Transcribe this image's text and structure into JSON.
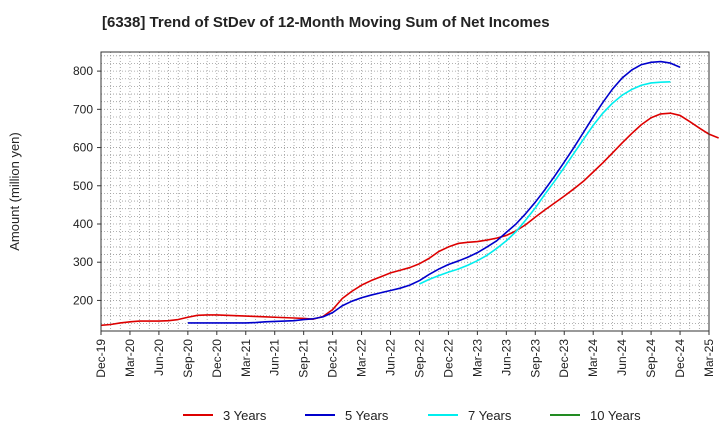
{
  "chart_data": {
    "type": "line",
    "title": "[6338]  Trend of StDev of 12-Month Moving Sum of Net Incomes",
    "xlabel": "",
    "ylabel": "Amount (million yen)",
    "ylim": [
      120,
      850
    ],
    "yticks": [
      200,
      300,
      400,
      500,
      600,
      700,
      800
    ],
    "x_ticks": [
      "Dec-19",
      "Mar-20",
      "Jun-20",
      "Sep-20",
      "Dec-20",
      "Mar-21",
      "Jun-21",
      "Sep-21",
      "Dec-21",
      "Mar-22",
      "Jun-22",
      "Sep-22",
      "Dec-22",
      "Mar-23",
      "Jun-23",
      "Sep-23",
      "Dec-23",
      "Mar-24",
      "Jun-24",
      "Sep-24",
      "Dec-24",
      "Mar-25"
    ],
    "grid": true,
    "legend_position": "bottom",
    "series": [
      {
        "name": "3 Years",
        "color": "#dd0000",
        "points": [
          [
            0,
            135
          ],
          [
            1,
            137
          ],
          [
            2,
            141
          ],
          [
            3,
            144
          ],
          [
            4,
            146
          ],
          [
            5,
            146
          ],
          [
            6,
            146
          ],
          [
            7,
            147
          ],
          [
            8,
            150
          ],
          [
            9,
            156
          ],
          [
            10,
            161
          ],
          [
            11,
            162
          ],
          [
            12,
            162
          ],
          [
            13,
            161
          ],
          [
            14,
            160
          ],
          [
            15,
            159
          ],
          [
            16,
            158
          ],
          [
            17,
            157
          ],
          [
            18,
            156
          ],
          [
            19,
            155
          ],
          [
            20,
            154
          ],
          [
            21,
            153
          ],
          [
            22,
            151
          ],
          [
            23,
            158
          ],
          [
            24,
            176
          ],
          [
            25,
            205
          ],
          [
            26,
            224
          ],
          [
            27,
            240
          ],
          [
            28,
            252
          ],
          [
            29,
            262
          ],
          [
            30,
            272
          ],
          [
            31,
            279
          ],
          [
            32,
            286
          ],
          [
            33,
            296
          ],
          [
            34,
            310
          ],
          [
            35,
            328
          ],
          [
            36,
            340
          ],
          [
            37,
            349
          ],
          [
            38,
            352
          ],
          [
            39,
            354
          ],
          [
            40,
            358
          ],
          [
            41,
            363
          ],
          [
            42,
            370
          ],
          [
            43,
            382
          ],
          [
            44,
            398
          ],
          [
            45,
            418
          ],
          [
            46,
            437
          ],
          [
            47,
            455
          ],
          [
            48,
            473
          ],
          [
            49,
            492
          ],
          [
            50,
            512
          ],
          [
            51,
            536
          ],
          [
            52,
            560
          ],
          [
            53,
            586
          ],
          [
            54,
            612
          ],
          [
            55,
            637
          ],
          [
            56,
            660
          ],
          [
            57,
            678
          ],
          [
            58,
            688
          ],
          [
            59,
            690
          ],
          [
            60,
            684
          ],
          [
            61,
            668
          ],
          [
            62,
            651
          ],
          [
            63,
            635
          ],
          [
            64,
            625
          ]
        ]
      },
      {
        "name": "5 Years",
        "color": "#0000cc",
        "points": [
          [
            9,
            141
          ],
          [
            10,
            141
          ],
          [
            11,
            141
          ],
          [
            12,
            141
          ],
          [
            13,
            141
          ],
          [
            14,
            141
          ],
          [
            15,
            141
          ],
          [
            16,
            142
          ],
          [
            17,
            144
          ],
          [
            18,
            145
          ],
          [
            19,
            146
          ],
          [
            20,
            147
          ],
          [
            21,
            150
          ],
          [
            22,
            152
          ],
          [
            23,
            157
          ],
          [
            24,
            168
          ],
          [
            25,
            186
          ],
          [
            26,
            198
          ],
          [
            27,
            207
          ],
          [
            28,
            214
          ],
          [
            29,
            220
          ],
          [
            30,
            226
          ],
          [
            31,
            232
          ],
          [
            32,
            240
          ],
          [
            33,
            252
          ],
          [
            34,
            268
          ],
          [
            35,
            282
          ],
          [
            36,
            294
          ],
          [
            37,
            303
          ],
          [
            38,
            313
          ],
          [
            39,
            325
          ],
          [
            40,
            340
          ],
          [
            41,
            356
          ],
          [
            42,
            378
          ],
          [
            43,
            400
          ],
          [
            44,
            427
          ],
          [
            45,
            457
          ],
          [
            46,
            490
          ],
          [
            47,
            525
          ],
          [
            48,
            562
          ],
          [
            49,
            600
          ],
          [
            50,
            640
          ],
          [
            51,
            680
          ],
          [
            52,
            718
          ],
          [
            53,
            753
          ],
          [
            54,
            782
          ],
          [
            55,
            803
          ],
          [
            56,
            817
          ],
          [
            57,
            823
          ],
          [
            58,
            825
          ],
          [
            59,
            821
          ],
          [
            60,
            810
          ]
        ]
      },
      {
        "name": "7 Years",
        "color": "#00eeee",
        "points": [
          [
            33,
            243
          ],
          [
            34,
            255
          ],
          [
            35,
            265
          ],
          [
            36,
            274
          ],
          [
            37,
            282
          ],
          [
            38,
            292
          ],
          [
            39,
            304
          ],
          [
            40,
            318
          ],
          [
            41,
            336
          ],
          [
            42,
            356
          ],
          [
            43,
            380
          ],
          [
            44,
            410
          ],
          [
            45,
            442
          ],
          [
            46,
            478
          ],
          [
            47,
            512
          ],
          [
            48,
            548
          ],
          [
            49,
            585
          ],
          [
            50,
            622
          ],
          [
            51,
            658
          ],
          [
            52,
            690
          ],
          [
            53,
            716
          ],
          [
            54,
            737
          ],
          [
            55,
            752
          ],
          [
            56,
            763
          ],
          [
            57,
            769
          ],
          [
            58,
            771
          ],
          [
            59,
            772
          ]
        ]
      },
      {
        "name": "10 Years",
        "color": "#228b22",
        "points": []
      }
    ]
  }
}
